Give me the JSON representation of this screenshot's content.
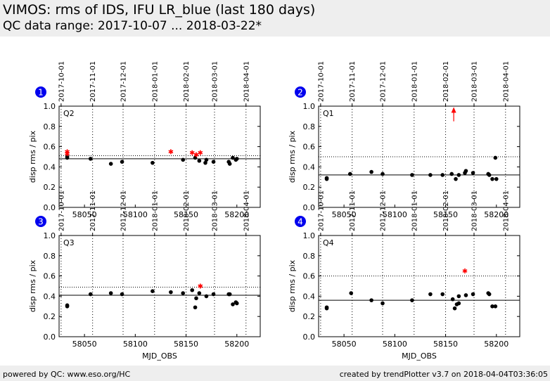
{
  "header": {
    "title": "VIMOS: rms of IDS, IFU LR_blue (last 180 days)",
    "subtitle": "QC data range: 2017-10-07 ... 2018-03-22*"
  },
  "footer": {
    "left": "powered by QC: www.eso.org/HC",
    "right": "created by trendPlotter v3.7 on 2018-04-04T03:36:05"
  },
  "colors": {
    "data_point": "#000000",
    "outlier": "#ff0000",
    "badge": "#0000ee",
    "background": "#eeeeee"
  },
  "chart_data": [
    {
      "type": "scatter",
      "panel_number": "1",
      "panel_label": "Q2",
      "xlabel": "",
      "ylabel": "disp rms / pix",
      "xlim": [
        58025,
        58223
      ],
      "ylim": [
        0,
        1.0
      ],
      "yticks": [
        "0.0",
        "0.2",
        "0.4",
        "0.6",
        "0.8",
        "1.0"
      ],
      "xticks": [
        58050,
        58100,
        58150,
        58200
      ],
      "xtick_labels": [
        "58050",
        "58100",
        "58150",
        "58200"
      ],
      "date_ticks": [
        {
          "mjd": 58027,
          "label": "2017-10-01"
        },
        {
          "mjd": 58058,
          "label": "2017-11-01"
        },
        {
          "mjd": 58088,
          "label": "2017-12-01"
        },
        {
          "mjd": 58119,
          "label": "2018-01-01"
        },
        {
          "mjd": 58150,
          "label": "2018-02-01"
        },
        {
          "mjd": 58178,
          "label": "2018-03-01"
        },
        {
          "mjd": 58209,
          "label": "2018-04-01"
        }
      ],
      "ref_line": 0.48,
      "threshold_line": 0.51,
      "points": [
        {
          "x": 58033,
          "y": 0.49
        },
        {
          "x": 58033,
          "y": 0.5
        },
        {
          "x": 58056,
          "y": 0.48
        },
        {
          "x": 58076,
          "y": 0.43
        },
        {
          "x": 58087,
          "y": 0.45
        },
        {
          "x": 58117,
          "y": 0.44
        },
        {
          "x": 58147,
          "y": 0.47
        },
        {
          "x": 58159,
          "y": 0.49
        },
        {
          "x": 58163,
          "y": 0.46
        },
        {
          "x": 58169,
          "y": 0.44
        },
        {
          "x": 58170,
          "y": 0.47
        },
        {
          "x": 58177,
          "y": 0.45
        },
        {
          "x": 58192,
          "y": 0.45
        },
        {
          "x": 58193,
          "y": 0.43
        },
        {
          "x": 58196,
          "y": 0.49
        },
        {
          "x": 58199,
          "y": 0.47
        },
        {
          "x": 58200,
          "y": 0.48
        }
      ],
      "outliers": [
        {
          "x": 58033,
          "y": 0.53
        },
        {
          "x": 58033,
          "y": 0.55
        },
        {
          "x": 58135,
          "y": 0.55
        },
        {
          "x": 58156,
          "y": 0.54
        },
        {
          "x": 58160,
          "y": 0.52
        },
        {
          "x": 58164,
          "y": 0.54
        }
      ],
      "offscale_arrows": []
    },
    {
      "type": "scatter",
      "panel_number": "2",
      "panel_label": "Q1",
      "xlabel": "",
      "ylabel": "disp rms / pix",
      "xlim": [
        58025,
        58223
      ],
      "ylim": [
        0,
        1.0
      ],
      "yticks": [
        "0.0",
        "0.2",
        "0.4",
        "0.6",
        "0.8",
        "1.0"
      ],
      "xticks": [
        58050,
        58100,
        58150,
        58200
      ],
      "xtick_labels": [
        "58050",
        "58100",
        "58150",
        "58200"
      ],
      "date_ticks": [
        {
          "mjd": 58027,
          "label": "2017-10-01"
        },
        {
          "mjd": 58058,
          "label": "2017-11-01"
        },
        {
          "mjd": 58088,
          "label": "2017-12-01"
        },
        {
          "mjd": 58119,
          "label": "2018-01-01"
        },
        {
          "mjd": 58150,
          "label": "2018-02-01"
        },
        {
          "mjd": 58178,
          "label": "2018-03-01"
        },
        {
          "mjd": 58209,
          "label": "2018-04-01"
        }
      ],
      "ref_line": 0.32,
      "threshold_line": 0.5,
      "points": [
        {
          "x": 58033,
          "y": 0.28
        },
        {
          "x": 58033,
          "y": 0.29
        },
        {
          "x": 58056,
          "y": 0.33
        },
        {
          "x": 58077,
          "y": 0.35
        },
        {
          "x": 58088,
          "y": 0.33
        },
        {
          "x": 58117,
          "y": 0.32
        },
        {
          "x": 58135,
          "y": 0.32
        },
        {
          "x": 58147,
          "y": 0.32
        },
        {
          "x": 58156,
          "y": 0.33
        },
        {
          "x": 58160,
          "y": 0.28
        },
        {
          "x": 58163,
          "y": 0.32
        },
        {
          "x": 58169,
          "y": 0.34
        },
        {
          "x": 58170,
          "y": 0.36
        },
        {
          "x": 58177,
          "y": 0.34
        },
        {
          "x": 58192,
          "y": 0.33
        },
        {
          "x": 58193,
          "y": 0.32
        },
        {
          "x": 58196,
          "y": 0.28
        },
        {
          "x": 58199,
          "y": 0.49
        },
        {
          "x": 58200,
          "y": 0.28
        }
      ],
      "outliers": [],
      "offscale_arrows": [
        {
          "x": 58158,
          "y_from": 0.85,
          "y_to": 0.97
        }
      ]
    },
    {
      "type": "scatter",
      "panel_number": "3",
      "panel_label": "Q3",
      "xlabel": "MJD_OBS",
      "ylabel": "disp rms / pix",
      "xlim": [
        58025,
        58223
      ],
      "ylim": [
        0,
        1.0
      ],
      "yticks": [
        "0.0",
        "0.2",
        "0.4",
        "0.6",
        "0.8",
        "1.0"
      ],
      "xticks": [
        58050,
        58100,
        58150,
        58200
      ],
      "xtick_labels": [
        "58050",
        "58100",
        "58150",
        "58200"
      ],
      "date_ticks": [
        {
          "mjd": 58027,
          "label": "2017-10-01"
        },
        {
          "mjd": 58058,
          "label": "2017-11-01"
        },
        {
          "mjd": 58088,
          "label": "2017-12-01"
        },
        {
          "mjd": 58119,
          "label": "2018-01-01"
        },
        {
          "mjd": 58150,
          "label": "2018-02-01"
        },
        {
          "mjd": 58178,
          "label": "2018-03-01"
        },
        {
          "mjd": 58209,
          "label": "2018-04-01"
        }
      ],
      "ref_line": 0.41,
      "threshold_line": 0.49,
      "points": [
        {
          "x": 58033,
          "y": 0.3
        },
        {
          "x": 58033,
          "y": 0.31
        },
        {
          "x": 58056,
          "y": 0.42
        },
        {
          "x": 58076,
          "y": 0.43
        },
        {
          "x": 58087,
          "y": 0.42
        },
        {
          "x": 58117,
          "y": 0.45
        },
        {
          "x": 58135,
          "y": 0.44
        },
        {
          "x": 58147,
          "y": 0.43
        },
        {
          "x": 58156,
          "y": 0.46
        },
        {
          "x": 58159,
          "y": 0.29
        },
        {
          "x": 58160,
          "y": 0.38
        },
        {
          "x": 58163,
          "y": 0.43
        },
        {
          "x": 58170,
          "y": 0.4
        },
        {
          "x": 58177,
          "y": 0.42
        },
        {
          "x": 58192,
          "y": 0.42
        },
        {
          "x": 58193,
          "y": 0.42
        },
        {
          "x": 58196,
          "y": 0.32
        },
        {
          "x": 58199,
          "y": 0.34
        },
        {
          "x": 58200,
          "y": 0.33
        }
      ],
      "outliers": [
        {
          "x": 58164,
          "y": 0.5
        }
      ],
      "offscale_arrows": []
    },
    {
      "type": "scatter",
      "panel_number": "4",
      "panel_label": "Q4",
      "xlabel": "MJD_OBS",
      "ylabel": "disp rms / pix",
      "xlim": [
        58025,
        58223
      ],
      "ylim": [
        0,
        1.0
      ],
      "yticks": [
        "0.0",
        "0.2",
        "0.4",
        "0.6",
        "0.8",
        "1.0"
      ],
      "xticks": [
        58050,
        58100,
        58150,
        58200
      ],
      "xtick_labels": [
        "58050",
        "58100",
        "58150",
        "58200"
      ],
      "date_ticks": [
        {
          "mjd": 58027,
          "label": "2017-10-01"
        },
        {
          "mjd": 58058,
          "label": "2017-11-01"
        },
        {
          "mjd": 58088,
          "label": "2017-12-01"
        },
        {
          "mjd": 58119,
          "label": "2018-01-01"
        },
        {
          "mjd": 58150,
          "label": "2018-02-01"
        },
        {
          "mjd": 58178,
          "label": "2018-03-01"
        },
        {
          "mjd": 58209,
          "label": "2018-04-01"
        }
      ],
      "ref_line": 0.36,
      "threshold_line": 0.6,
      "points": [
        {
          "x": 58033,
          "y": 0.28
        },
        {
          "x": 58033,
          "y": 0.29
        },
        {
          "x": 58057,
          "y": 0.43
        },
        {
          "x": 58077,
          "y": 0.36
        },
        {
          "x": 58088,
          "y": 0.33
        },
        {
          "x": 58117,
          "y": 0.36
        },
        {
          "x": 58135,
          "y": 0.42
        },
        {
          "x": 58147,
          "y": 0.42
        },
        {
          "x": 58157,
          "y": 0.37
        },
        {
          "x": 58159,
          "y": 0.28
        },
        {
          "x": 58161,
          "y": 0.32
        },
        {
          "x": 58163,
          "y": 0.33
        },
        {
          "x": 58163,
          "y": 0.4
        },
        {
          "x": 58170,
          "y": 0.41
        },
        {
          "x": 58177,
          "y": 0.42
        },
        {
          "x": 58192,
          "y": 0.43
        },
        {
          "x": 58193,
          "y": 0.42
        },
        {
          "x": 58196,
          "y": 0.3
        },
        {
          "x": 58199,
          "y": 0.3
        }
      ],
      "outliers": [
        {
          "x": 58169,
          "y": 0.65
        }
      ],
      "offscale_arrows": []
    }
  ]
}
